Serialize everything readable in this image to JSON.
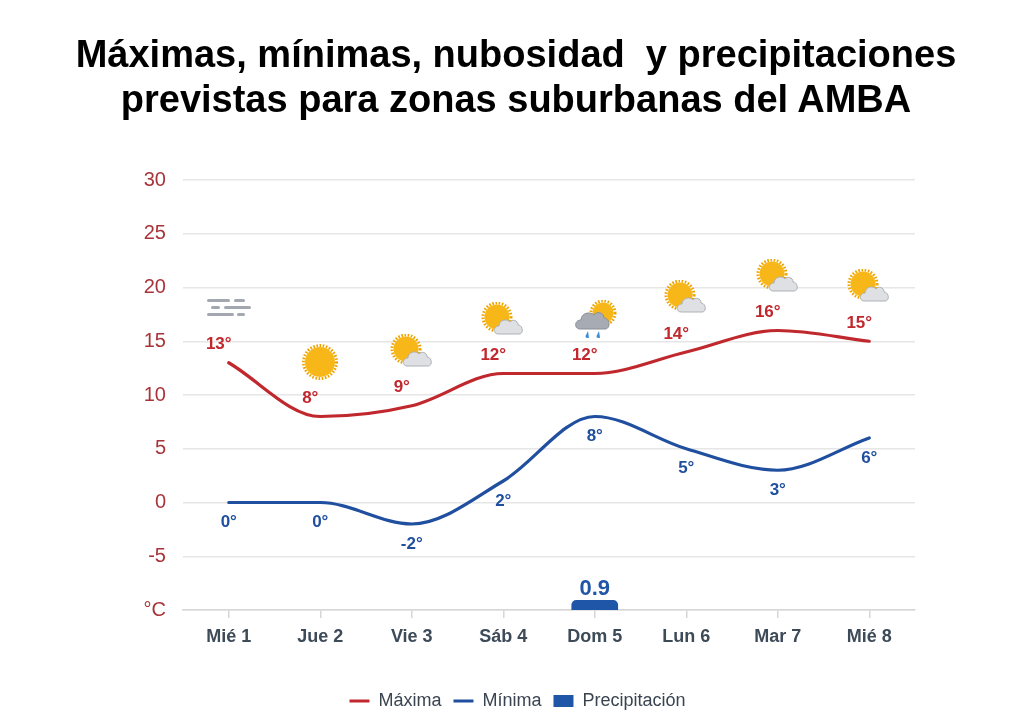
{
  "chart_data": {
    "type": "line",
    "title": "Máximas, mínimas, nubosidad  y precipitaciones previstas para zonas suburbanas del AMBA",
    "categories": [
      "Mié 1",
      "Jue 2",
      "Vie 3",
      "Sáb 4",
      "Dom 5",
      "Lun 6",
      "Mar 7",
      "Mié 8"
    ],
    "ylim": [
      -10,
      30
    ],
    "yticks": [
      {
        "value": -10,
        "label": "°C"
      },
      -5,
      0,
      5,
      10,
      15,
      20,
      25,
      30
    ],
    "series": [
      {
        "name": "Máxima",
        "color": "#c0282d",
        "values": [
          13,
          8,
          9,
          12,
          12,
          14,
          16,
          15
        ],
        "value_labels": [
          "13°",
          "8°",
          "9°",
          "12°",
          "12°",
          "14°",
          "16°",
          "15°"
        ]
      },
      {
        "name": "Mínima",
        "color": "#1f4f9e",
        "values": [
          0,
          0,
          -2,
          2,
          8,
          5,
          3,
          6
        ],
        "value_labels": [
          "0°",
          "0°",
          "-2°",
          "2°",
          "8°",
          "5°",
          "3°",
          "6°"
        ]
      },
      {
        "name": "Precipitación",
        "type": "bar",
        "color": "#1f56a8",
        "base": [
          null,
          null,
          null,
          null,
          -10,
          null,
          null,
          null
        ],
        "values": [
          null,
          null,
          null,
          null,
          0.9,
          null,
          null,
          null
        ],
        "value_labels": [
          null,
          null,
          null,
          null,
          "0.9",
          null,
          null,
          null
        ]
      }
    ],
    "grid": "y",
    "legend": "bottom"
  }
}
